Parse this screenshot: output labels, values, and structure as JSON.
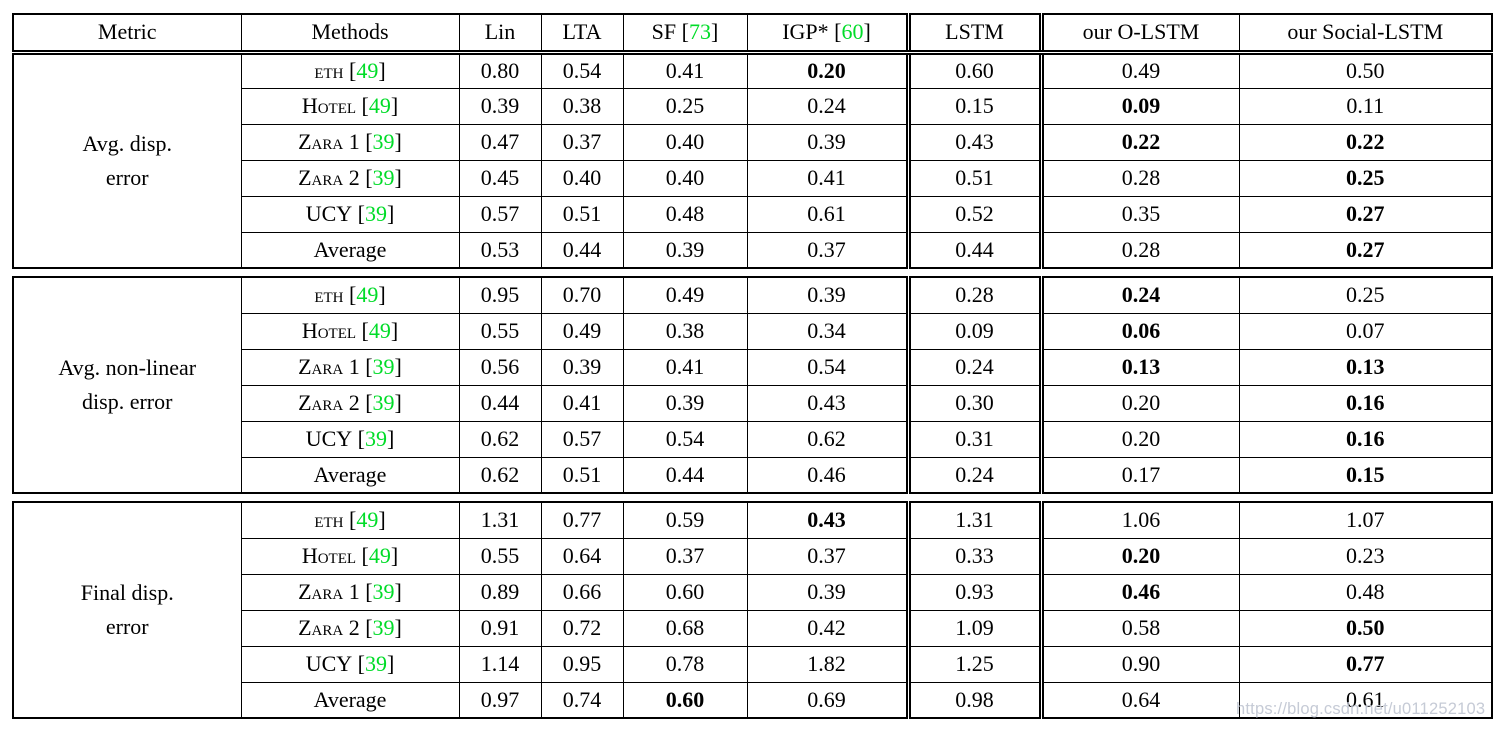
{
  "colors": {
    "ref_green": "#00DC28",
    "text": "#000000",
    "border": "#000000",
    "background": "#ffffff",
    "watermark_gray": "#c3c8d4"
  },
  "watermark": "https://blog.csdn.net/u011252103",
  "table": {
    "headers": [
      {
        "label": "Metric"
      },
      {
        "label": "Methods"
      },
      {
        "label": "Lin"
      },
      {
        "label": "LTA"
      },
      {
        "label": "SF",
        "ref": "73"
      },
      {
        "label": "IGP*",
        "ref": "60"
      },
      {
        "label": "LSTM"
      },
      {
        "label": "our O-LSTM"
      },
      {
        "label": "our Social-LSTM"
      }
    ],
    "blocks": [
      {
        "metric_lines": [
          "Avg. disp.",
          "error"
        ],
        "rows": [
          {
            "method": {
              "name": "eth",
              "sc": true,
              "ref": "49"
            },
            "values": [
              {
                "v": "0.80"
              },
              {
                "v": "0.54"
              },
              {
                "v": "0.41"
              },
              {
                "v": "0.20",
                "bold": true
              },
              {
                "v": "0.60"
              },
              {
                "v": "0.49"
              },
              {
                "v": "0.50"
              }
            ]
          },
          {
            "method": {
              "name": "Hotel",
              "sc": true,
              "ref": "49"
            },
            "values": [
              {
                "v": "0.39"
              },
              {
                "v": "0.38"
              },
              {
                "v": "0.25"
              },
              {
                "v": "0.24"
              },
              {
                "v": "0.15"
              },
              {
                "v": "0.09",
                "bold": true
              },
              {
                "v": "0.11"
              }
            ]
          },
          {
            "method": {
              "name": "Zara 1",
              "sc": true,
              "ref": "39"
            },
            "values": [
              {
                "v": "0.47"
              },
              {
                "v": "0.37"
              },
              {
                "v": "0.40"
              },
              {
                "v": "0.39"
              },
              {
                "v": "0.43"
              },
              {
                "v": "0.22",
                "bold": true
              },
              {
                "v": "0.22",
                "bold": true
              }
            ]
          },
          {
            "method": {
              "name": "Zara 2",
              "sc": true,
              "ref": "39"
            },
            "values": [
              {
                "v": "0.45"
              },
              {
                "v": "0.40"
              },
              {
                "v": "0.40"
              },
              {
                "v": "0.41"
              },
              {
                "v": "0.51"
              },
              {
                "v": "0.28"
              },
              {
                "v": "0.25",
                "bold": true
              }
            ]
          },
          {
            "method": {
              "name": "UCY",
              "sc": true,
              "ref": "39"
            },
            "values": [
              {
                "v": "0.57"
              },
              {
                "v": "0.51"
              },
              {
                "v": "0.48"
              },
              {
                "v": "0.61"
              },
              {
                "v": "0.52"
              },
              {
                "v": "0.35"
              },
              {
                "v": "0.27",
                "bold": true
              }
            ]
          },
          {
            "method": {
              "name": "Average"
            },
            "values": [
              {
                "v": "0.53"
              },
              {
                "v": "0.44"
              },
              {
                "v": "0.39"
              },
              {
                "v": "0.37"
              },
              {
                "v": "0.44"
              },
              {
                "v": "0.28"
              },
              {
                "v": "0.27",
                "bold": true
              }
            ]
          }
        ]
      },
      {
        "metric_lines": [
          "Avg. non-linear",
          "disp. error"
        ],
        "rows": [
          {
            "method": {
              "name": "eth",
              "sc": true,
              "ref": "49"
            },
            "values": [
              {
                "v": "0.95"
              },
              {
                "v": "0.70"
              },
              {
                "v": "0.49"
              },
              {
                "v": "0.39"
              },
              {
                "v": "0.28"
              },
              {
                "v": "0.24",
                "bold": true
              },
              {
                "v": "0.25"
              }
            ]
          },
          {
            "method": {
              "name": "Hotel",
              "sc": true,
              "ref": "49"
            },
            "values": [
              {
                "v": "0.55"
              },
              {
                "v": "0.49"
              },
              {
                "v": "0.38"
              },
              {
                "v": "0.34"
              },
              {
                "v": "0.09"
              },
              {
                "v": "0.06",
                "bold": true
              },
              {
                "v": "0.07"
              }
            ]
          },
          {
            "method": {
              "name": "Zara 1",
              "sc": true,
              "ref": "39"
            },
            "values": [
              {
                "v": "0.56"
              },
              {
                "v": "0.39"
              },
              {
                "v": "0.41"
              },
              {
                "v": "0.54"
              },
              {
                "v": "0.24"
              },
              {
                "v": "0.13",
                "bold": true
              },
              {
                "v": "0.13",
                "bold": true
              }
            ]
          },
          {
            "method": {
              "name": "Zara 2",
              "sc": true,
              "ref": "39"
            },
            "values": [
              {
                "v": "0.44"
              },
              {
                "v": "0.41"
              },
              {
                "v": "0.39"
              },
              {
                "v": "0.43"
              },
              {
                "v": "0.30"
              },
              {
                "v": "0.20"
              },
              {
                "v": "0.16",
                "bold": true
              }
            ]
          },
          {
            "method": {
              "name": "UCY",
              "sc": true,
              "ref": "39"
            },
            "values": [
              {
                "v": "0.62"
              },
              {
                "v": "0.57"
              },
              {
                "v": "0.54"
              },
              {
                "v": "0.62"
              },
              {
                "v": "0.31"
              },
              {
                "v": "0.20"
              },
              {
                "v": "0.16",
                "bold": true
              }
            ]
          },
          {
            "method": {
              "name": "Average"
            },
            "values": [
              {
                "v": "0.62"
              },
              {
                "v": "0.51"
              },
              {
                "v": "0.44"
              },
              {
                "v": "0.46"
              },
              {
                "v": "0.24"
              },
              {
                "v": "0.17"
              },
              {
                "v": "0.15",
                "bold": true
              }
            ]
          }
        ]
      },
      {
        "metric_lines": [
          "Final disp.",
          "error"
        ],
        "rows": [
          {
            "method": {
              "name": "eth",
              "sc": true,
              "ref": "49"
            },
            "values": [
              {
                "v": "1.31"
              },
              {
                "v": "0.77"
              },
              {
                "v": "0.59"
              },
              {
                "v": "0.43",
                "bold": true
              },
              {
                "v": "1.31"
              },
              {
                "v": "1.06"
              },
              {
                "v": "1.07"
              }
            ]
          },
          {
            "method": {
              "name": "Hotel",
              "sc": true,
              "ref": "49"
            },
            "values": [
              {
                "v": "0.55"
              },
              {
                "v": "0.64"
              },
              {
                "v": "0.37"
              },
              {
                "v": "0.37"
              },
              {
                "v": "0.33"
              },
              {
                "v": "0.20",
                "bold": true
              },
              {
                "v": "0.23"
              }
            ]
          },
          {
            "method": {
              "name": "Zara 1",
              "sc": true,
              "ref": "39"
            },
            "values": [
              {
                "v": "0.89"
              },
              {
                "v": "0.66"
              },
              {
                "v": "0.60"
              },
              {
                "v": "0.39"
              },
              {
                "v": "0.93"
              },
              {
                "v": "0.46",
                "bold": true
              },
              {
                "v": "0.48"
              }
            ]
          },
          {
            "method": {
              "name": "Zara 2",
              "sc": true,
              "ref": "39"
            },
            "values": [
              {
                "v": "0.91"
              },
              {
                "v": "0.72"
              },
              {
                "v": "0.68"
              },
              {
                "v": "0.42"
              },
              {
                "v": "1.09"
              },
              {
                "v": "0.58"
              },
              {
                "v": "0.50",
                "bold": true
              }
            ]
          },
          {
            "method": {
              "name": "UCY",
              "sc": true,
              "ref": "39"
            },
            "values": [
              {
                "v": "1.14"
              },
              {
                "v": "0.95"
              },
              {
                "v": "0.78"
              },
              {
                "v": "1.82"
              },
              {
                "v": "1.25"
              },
              {
                "v": "0.90"
              },
              {
                "v": "0.77",
                "bold": true
              }
            ]
          },
          {
            "method": {
              "name": "Average"
            },
            "values": [
              {
                "v": "0.97"
              },
              {
                "v": "0.74"
              },
              {
                "v": "0.60",
                "bold": true
              },
              {
                "v": "0.69"
              },
              {
                "v": "0.98"
              },
              {
                "v": "0.64"
              },
              {
                "v": "0.61"
              }
            ]
          }
        ]
      }
    ]
  }
}
